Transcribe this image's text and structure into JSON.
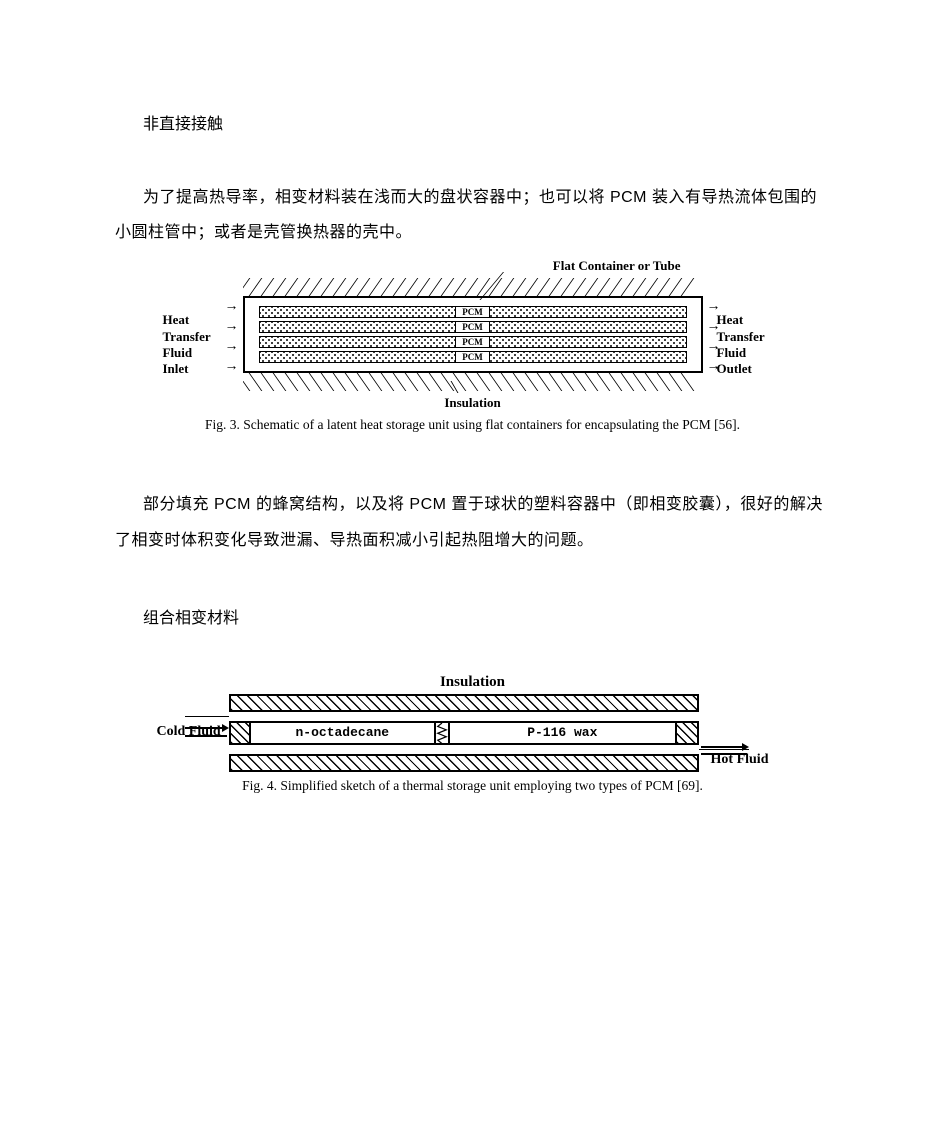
{
  "heading1": "非直接接触",
  "para1": "为了提高热导率，相变材料装在浅而大的盘状容器中；也可以将 PCM 装入有导热流体包围的小圆柱管中；或者是壳管换热器的壳中。",
  "para2": "部分填充 PCM 的蜂窝结构，以及将 PCM 置于球状的塑料容器中（即相变胶囊），很好的解决了相变时体积变化导致泄漏、导热面积减小引起热阻增大的问题。",
  "heading2": "组合相变材料",
  "fig3": {
    "top_label": "Flat Container or Tube",
    "left_label_lines": [
      "Heat",
      "Transfer",
      "Fluid",
      "Inlet"
    ],
    "right_label_lines": [
      "Heat",
      "Transfer",
      "Fluid",
      "Outlet"
    ],
    "bar_label": "PCM",
    "bottom_label": "Insulation",
    "caption": "Fig. 3. Schematic of a latent heat storage unit using flat containers for encapsulating the PCM [56].",
    "bar_count": 4,
    "hatch_count": 38,
    "colors": {
      "line": "#000000",
      "bg": "#ffffff"
    }
  },
  "fig4": {
    "top_label": "Insulation",
    "cold_label": "Cold Fluid",
    "hot_label": "Hot Fluid",
    "cell1": "n-octadecane",
    "cell2": "P-116 wax",
    "caption": "Fig. 4. Simplified sketch of a thermal storage unit employing two types of PCM [69].",
    "colors": {
      "line": "#000000",
      "bg": "#ffffff"
    }
  }
}
